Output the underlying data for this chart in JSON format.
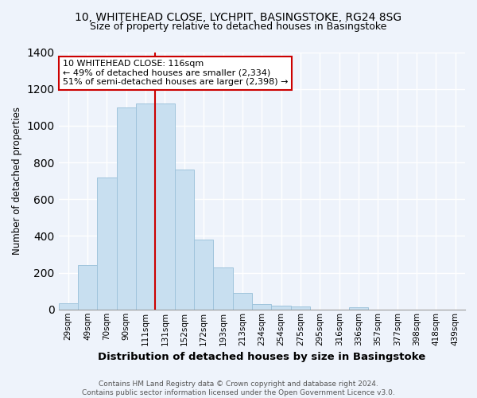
{
  "title_line1": "10, WHITEHEAD CLOSE, LYCHPIT, BASINGSTOKE, RG24 8SG",
  "title_line2": "Size of property relative to detached houses in Basingstoke",
  "xlabel": "Distribution of detached houses by size in Basingstoke",
  "ylabel": "Number of detached properties",
  "bar_labels": [
    "29sqm",
    "49sqm",
    "70sqm",
    "90sqm",
    "111sqm",
    "131sqm",
    "152sqm",
    "172sqm",
    "193sqm",
    "213sqm",
    "234sqm",
    "254sqm",
    "275sqm",
    "295sqm",
    "316sqm",
    "336sqm",
    "357sqm",
    "377sqm",
    "398sqm",
    "418sqm",
    "439sqm"
  ],
  "bar_values": [
    35,
    240,
    720,
    1100,
    1120,
    1120,
    760,
    380,
    230,
    90,
    30,
    20,
    15,
    0,
    0,
    10,
    0,
    0,
    0,
    0,
    0
  ],
  "bar_color": "#c8dff0",
  "bar_edge_color": "#a0c4dc",
  "vline_color": "#cc0000",
  "annotation_text": "10 WHITEHEAD CLOSE: 116sqm\n← 49% of detached houses are smaller (2,334)\n51% of semi-detached houses are larger (2,398) →",
  "annotation_box_facecolor": "#ffffff",
  "annotation_box_edgecolor": "#cc0000",
  "ylim": [
    0,
    1400
  ],
  "yticks": [
    0,
    200,
    400,
    600,
    800,
    1000,
    1200,
    1400
  ],
  "footer_line1": "Contains HM Land Registry data © Crown copyright and database right 2024.",
  "footer_line2": "Contains public sector information licensed under the Open Government Licence v3.0.",
  "bg_color": "#eef3fb",
  "grid_color": "#ffffff",
  "title_fontsize": 10,
  "subtitle_fontsize": 9,
  "xlabel_fontsize": 9.5,
  "ylabel_fontsize": 8.5,
  "tick_fontsize": 7.5,
  "footer_fontsize": 6.5,
  "annot_fontsize": 8
}
